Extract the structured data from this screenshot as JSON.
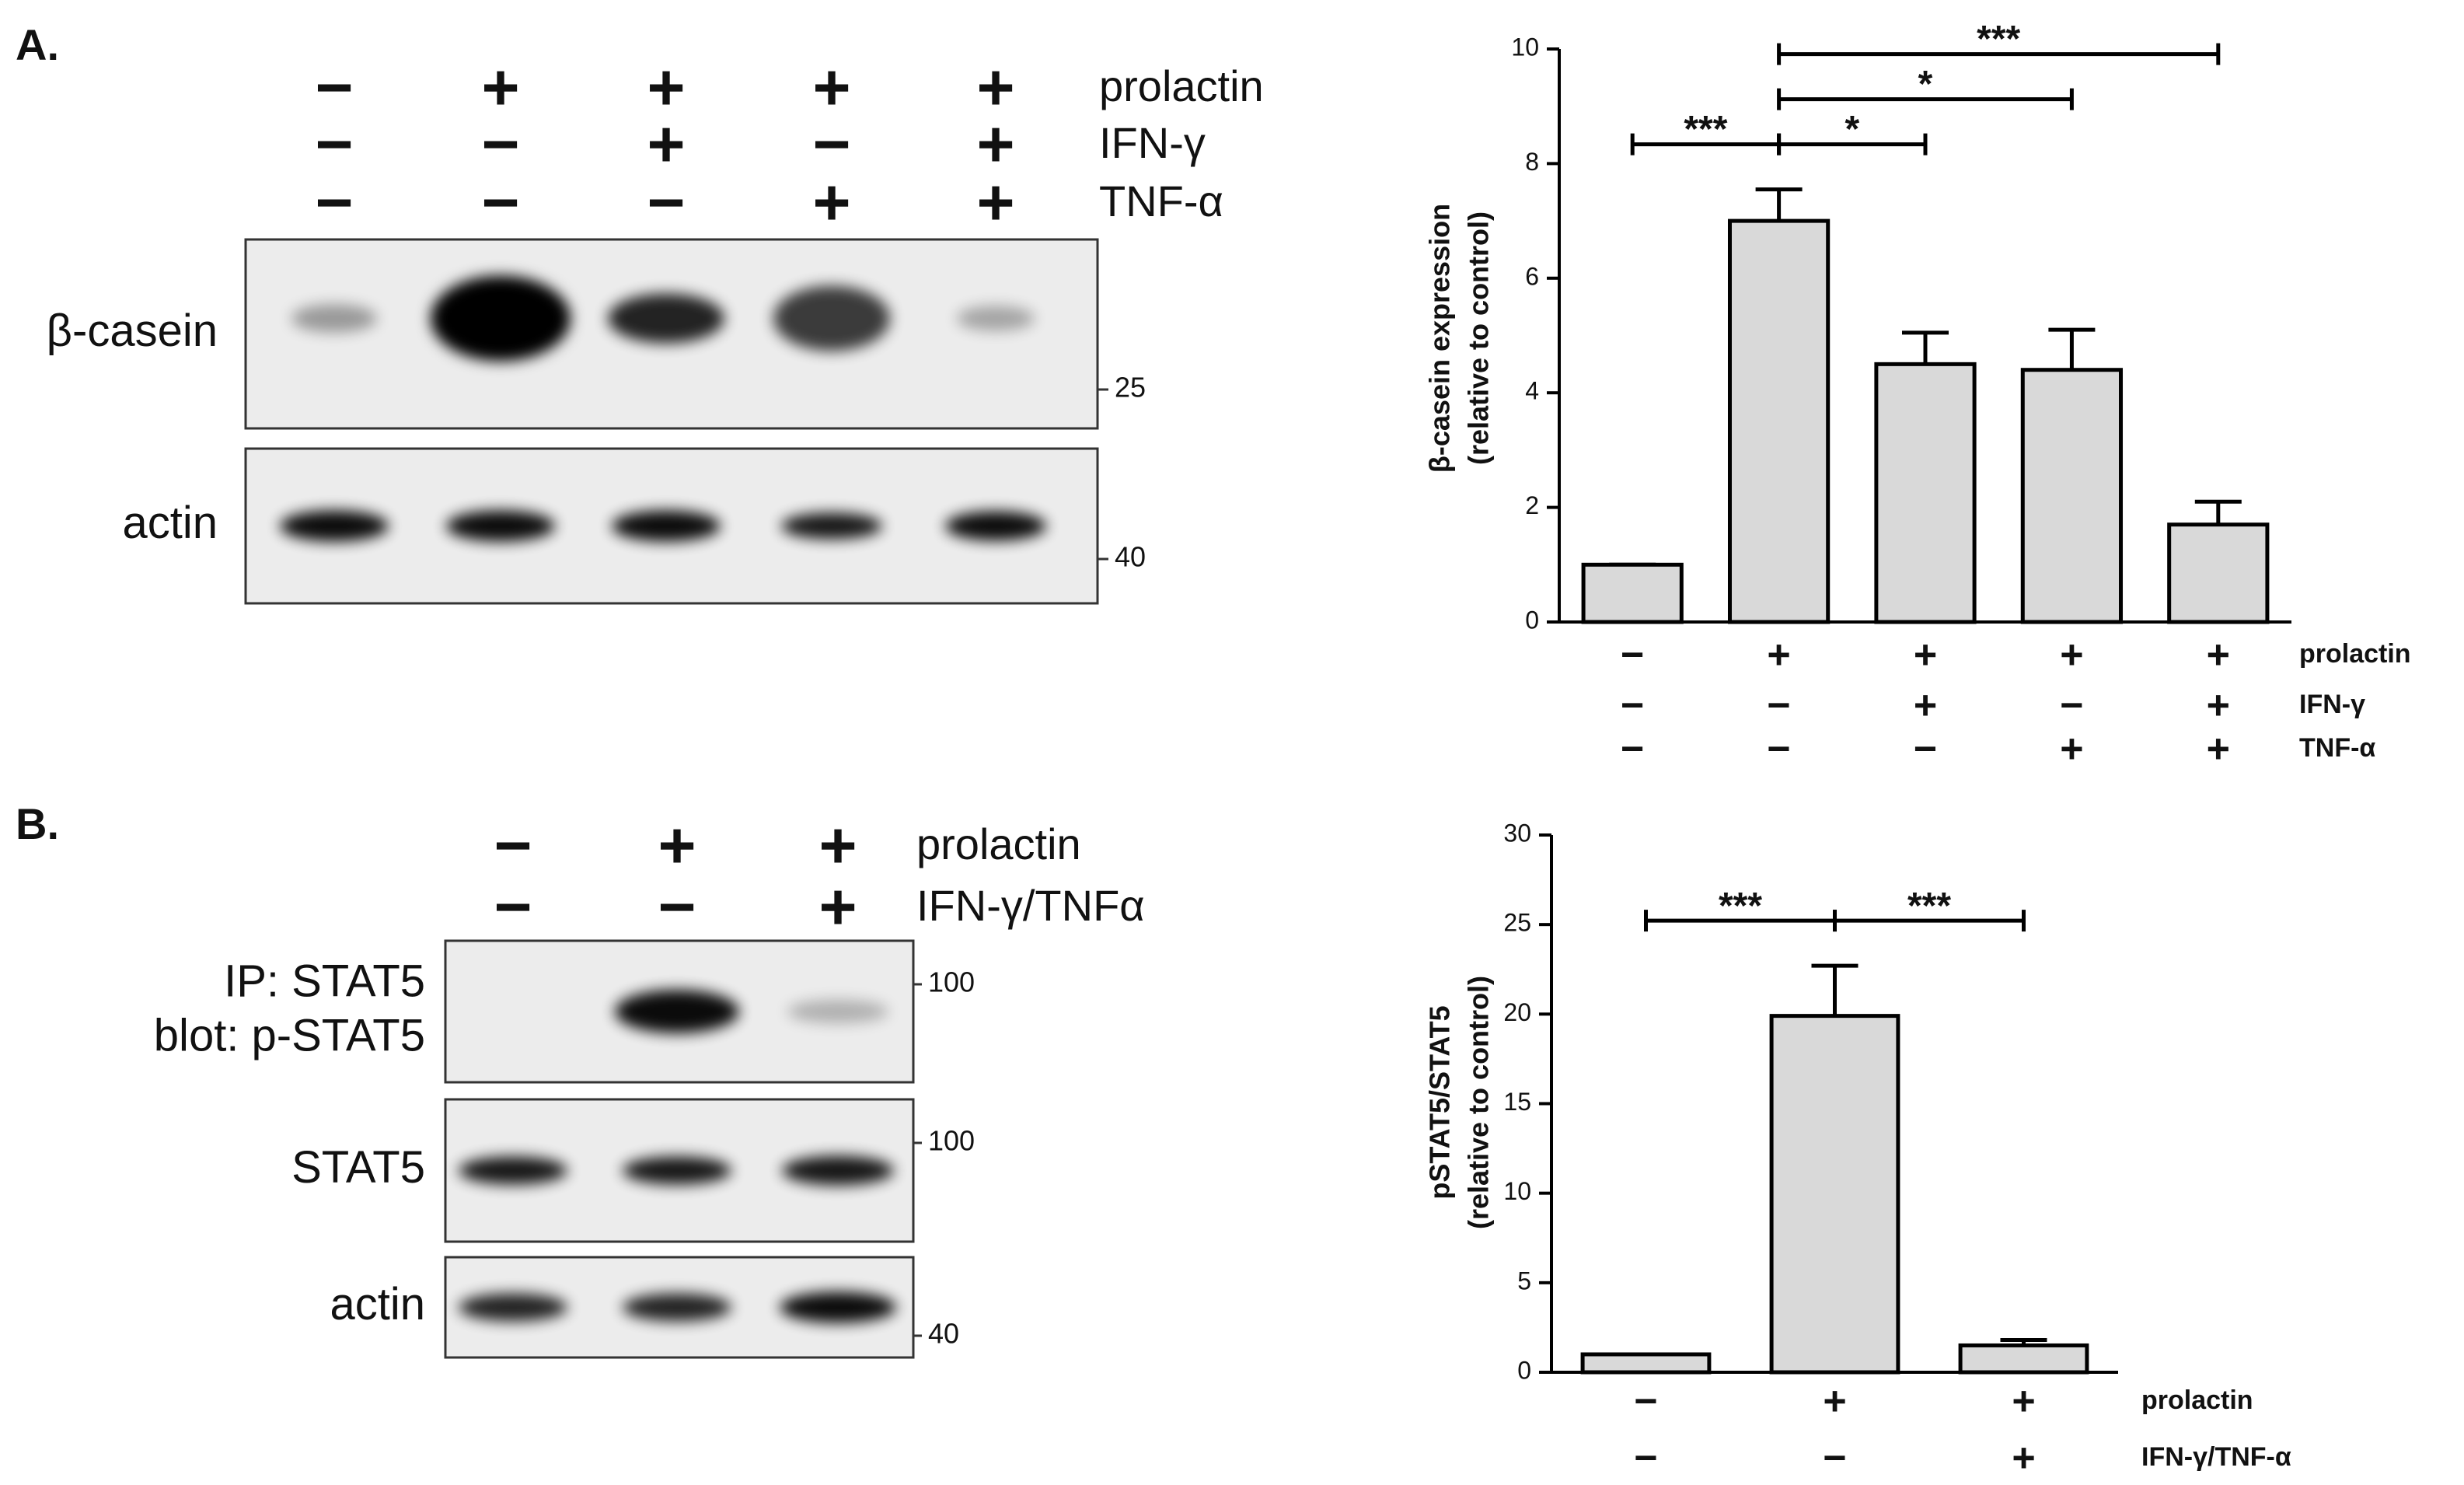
{
  "panel_a": {
    "label": "A.",
    "treatments": [
      {
        "name": "prolactin",
        "signs": [
          "−",
          "+",
          "+",
          "+",
          "+"
        ]
      },
      {
        "name": "IFN-γ",
        "signs": [
          "−",
          "−",
          "+",
          "−",
          "+"
        ]
      },
      {
        "name": "TNF-α",
        "signs": [
          "−",
          "−",
          "−",
          "+",
          "+"
        ]
      }
    ],
    "blot_rows": [
      {
        "label": [
          "β-casein"
        ],
        "marker": 25
      },
      {
        "label": [
          "actin"
        ],
        "marker": 40
      }
    ]
  },
  "panel_b": {
    "label": "B.",
    "treatments": [
      {
        "name": "prolactin",
        "signs": [
          "−",
          "+",
          "+"
        ]
      },
      {
        "name": "IFN-γ/TNFα",
        "signs": [
          "−",
          "−",
          "+"
        ]
      }
    ],
    "blot_rows": [
      {
        "label": [
          "IP: STAT5",
          "blot: p-STAT5"
        ],
        "marker": 100
      },
      {
        "label": [
          "STAT5"
        ],
        "marker": 100
      },
      {
        "label": [
          "actin"
        ],
        "marker": 40
      }
    ]
  },
  "chart_data": [
    {
      "type": "bar",
      "ylabel": [
        "β-casein expression",
        "(relative to control)"
      ],
      "values": [
        1,
        7.0,
        4.5,
        4.4,
        1.7
      ],
      "errors": [
        0,
        0.55,
        0.55,
        0.7,
        0.4
      ],
      "color": "#d9d9d9",
      "ylim": [
        0,
        10
      ],
      "yticks": [
        0,
        2,
        4,
        6,
        8,
        10
      ],
      "conditions": [
        {
          "name": "prolactin",
          "signs": [
            "−",
            "+",
            "+",
            "+",
            "+"
          ]
        },
        {
          "name": "IFN-γ",
          "signs": [
            "−",
            "−",
            "+",
            "−",
            "+"
          ]
        },
        {
          "name": "TNF-α",
          "signs": [
            "−",
            "−",
            "−",
            "+",
            "+"
          ]
        }
      ],
      "brackets": [
        {
          "from": 0,
          "to": 1,
          "label": "***"
        },
        {
          "from": 1,
          "to": 2,
          "label": "*"
        },
        {
          "from": 1,
          "to": 3,
          "label": "*"
        },
        {
          "from": 1,
          "to": 4,
          "label": "***"
        }
      ]
    },
    {
      "type": "bar",
      "ylabel": [
        "pSTAT5/STAT5",
        "(relative to control)"
      ],
      "values": [
        1,
        19.9,
        1.5
      ],
      "errors": [
        0,
        2.8,
        0.3
      ],
      "color": "#d9d9d9",
      "ylim": [
        0,
        30
      ],
      "yticks": [
        0,
        5,
        10,
        15,
        20,
        25,
        30
      ],
      "conditions": [
        {
          "name": "prolactin",
          "signs": [
            "−",
            "+",
            "+"
          ]
        },
        {
          "name": "IFN-γ/TNF-α",
          "signs": [
            "−",
            "−",
            "+"
          ]
        }
      ],
      "brackets": [
        {
          "from": 0,
          "to": 1,
          "label": "***"
        },
        {
          "from": 1,
          "to": 2,
          "label": "***"
        }
      ]
    }
  ]
}
